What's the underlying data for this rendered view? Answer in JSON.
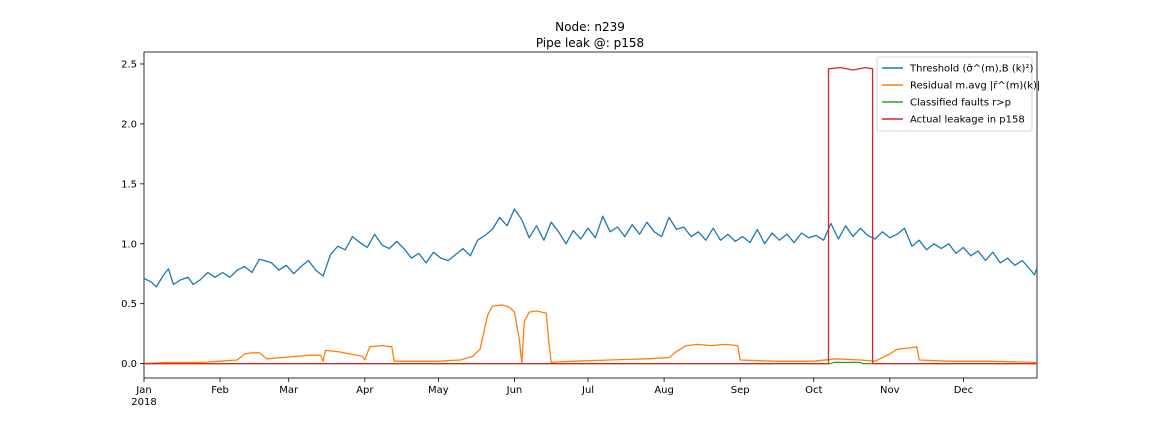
{
  "chart_data": {
    "type": "line",
    "title": "Node: n239",
    "subtitle": "Pipe leak @: p158",
    "xlabel": "",
    "ylabel": "",
    "x_range": [
      "2018-01-01",
      "2018-12-31"
    ],
    "ylim": [
      -0.12,
      2.6
    ],
    "y_ticks": [
      "0.0",
      "0.5",
      "1.0",
      "1.5",
      "2.0",
      "2.5"
    ],
    "y_tick_values": [
      0.0,
      0.5,
      1.0,
      1.5,
      2.0,
      2.5
    ],
    "x_ticks": [
      "Jan",
      "Feb",
      "Mar",
      "Apr",
      "May",
      "Jun",
      "Jul",
      "Aug",
      "Sep",
      "Oct",
      "Nov",
      "Dec"
    ],
    "x_tick_dates": [
      "2018-01-01",
      "2018-02-01",
      "2018-03-01",
      "2018-04-01",
      "2018-05-01",
      "2018-06-01",
      "2018-07-01",
      "2018-08-01",
      "2018-09-01",
      "2018-10-01",
      "2018-11-01",
      "2018-12-01"
    ],
    "x_year_label": "2018",
    "grid": false,
    "legend_position": "top-right",
    "series": [
      {
        "name": "Threshold (σ̂^(m),B (k)²)",
        "color": "#1f77b4",
        "points": [
          [
            "2018-01-01",
            0.71
          ],
          [
            "2018-01-04",
            0.68
          ],
          [
            "2018-01-06",
            0.64
          ],
          [
            "2018-01-09",
            0.74
          ],
          [
            "2018-01-11",
            0.79
          ],
          [
            "2018-01-13",
            0.66
          ],
          [
            "2018-01-16",
            0.7
          ],
          [
            "2018-01-19",
            0.72
          ],
          [
            "2018-01-21",
            0.66
          ],
          [
            "2018-01-24",
            0.7
          ],
          [
            "2018-01-27",
            0.76
          ],
          [
            "2018-01-30",
            0.72
          ],
          [
            "2018-02-02",
            0.76
          ],
          [
            "2018-02-05",
            0.72
          ],
          [
            "2018-02-08",
            0.78
          ],
          [
            "2018-02-11",
            0.81
          ],
          [
            "2018-02-14",
            0.76
          ],
          [
            "2018-02-17",
            0.87
          ],
          [
            "2018-02-19",
            0.86
          ],
          [
            "2018-02-22",
            0.84
          ],
          [
            "2018-02-25",
            0.78
          ],
          [
            "2018-02-28",
            0.82
          ],
          [
            "2018-03-03",
            0.75
          ],
          [
            "2018-03-06",
            0.81
          ],
          [
            "2018-03-09",
            0.86
          ],
          [
            "2018-03-12",
            0.78
          ],
          [
            "2018-03-15",
            0.73
          ],
          [
            "2018-03-18",
            0.91
          ],
          [
            "2018-03-21",
            0.98
          ],
          [
            "2018-03-24",
            0.95
          ],
          [
            "2018-03-27",
            1.06
          ],
          [
            "2018-03-30",
            1.01
          ],
          [
            "2018-04-02",
            0.97
          ],
          [
            "2018-04-05",
            1.08
          ],
          [
            "2018-04-08",
            0.99
          ],
          [
            "2018-04-11",
            0.96
          ],
          [
            "2018-04-14",
            1.02
          ],
          [
            "2018-04-17",
            0.96
          ],
          [
            "2018-04-20",
            0.88
          ],
          [
            "2018-04-23",
            0.92
          ],
          [
            "2018-04-26",
            0.84
          ],
          [
            "2018-04-29",
            0.93
          ],
          [
            "2018-05-02",
            0.88
          ],
          [
            "2018-05-05",
            0.86
          ],
          [
            "2018-05-08",
            0.91
          ],
          [
            "2018-05-11",
            0.96
          ],
          [
            "2018-05-14",
            0.9
          ],
          [
            "2018-05-17",
            1.03
          ],
          [
            "2018-05-20",
            1.07
          ],
          [
            "2018-05-23",
            1.12
          ],
          [
            "2018-05-26",
            1.22
          ],
          [
            "2018-05-29",
            1.15
          ],
          [
            "2018-06-01",
            1.29
          ],
          [
            "2018-06-04",
            1.2
          ],
          [
            "2018-06-07",
            1.05
          ],
          [
            "2018-06-10",
            1.15
          ],
          [
            "2018-06-13",
            1.03
          ],
          [
            "2018-06-16",
            1.18
          ],
          [
            "2018-06-19",
            1.1
          ],
          [
            "2018-06-22",
            1.0
          ],
          [
            "2018-06-25",
            1.11
          ],
          [
            "2018-06-28",
            1.04
          ],
          [
            "2018-07-01",
            1.13
          ],
          [
            "2018-07-04",
            1.05
          ],
          [
            "2018-07-07",
            1.23
          ],
          [
            "2018-07-10",
            1.1
          ],
          [
            "2018-07-13",
            1.14
          ],
          [
            "2018-07-16",
            1.06
          ],
          [
            "2018-07-19",
            1.16
          ],
          [
            "2018-07-22",
            1.08
          ],
          [
            "2018-07-25",
            1.18
          ],
          [
            "2018-07-28",
            1.1
          ],
          [
            "2018-07-31",
            1.06
          ],
          [
            "2018-08-03",
            1.22
          ],
          [
            "2018-08-06",
            1.12
          ],
          [
            "2018-08-09",
            1.14
          ],
          [
            "2018-08-12",
            1.06
          ],
          [
            "2018-08-15",
            1.1
          ],
          [
            "2018-08-18",
            1.03
          ],
          [
            "2018-08-21",
            1.13
          ],
          [
            "2018-08-24",
            1.03
          ],
          [
            "2018-08-27",
            1.08
          ],
          [
            "2018-08-30",
            1.02
          ],
          [
            "2018-09-02",
            1.06
          ],
          [
            "2018-09-05",
            1.01
          ],
          [
            "2018-09-08",
            1.12
          ],
          [
            "2018-09-11",
            1.0
          ],
          [
            "2018-09-14",
            1.09
          ],
          [
            "2018-09-17",
            1.03
          ],
          [
            "2018-09-20",
            1.08
          ],
          [
            "2018-09-23",
            1.01
          ],
          [
            "2018-09-26",
            1.09
          ],
          [
            "2018-09-29",
            1.05
          ],
          [
            "2018-10-02",
            1.07
          ],
          [
            "2018-10-05",
            1.03
          ],
          [
            "2018-10-08",
            1.17
          ],
          [
            "2018-10-11",
            1.04
          ],
          [
            "2018-10-14",
            1.15
          ],
          [
            "2018-10-17",
            1.06
          ],
          [
            "2018-10-20",
            1.13
          ],
          [
            "2018-10-23",
            1.07
          ],
          [
            "2018-10-26",
            1.04
          ],
          [
            "2018-10-29",
            1.1
          ],
          [
            "2018-11-01",
            1.05
          ],
          [
            "2018-11-04",
            1.08
          ],
          [
            "2018-11-07",
            1.13
          ],
          [
            "2018-11-10",
            0.98
          ],
          [
            "2018-11-13",
            1.03
          ],
          [
            "2018-11-16",
            0.95
          ],
          [
            "2018-11-19",
            1.0
          ],
          [
            "2018-11-22",
            0.96
          ],
          [
            "2018-11-25",
            1.0
          ],
          [
            "2018-11-28",
            0.92
          ],
          [
            "2018-12-01",
            0.97
          ],
          [
            "2018-12-04",
            0.9
          ],
          [
            "2018-12-07",
            0.94
          ],
          [
            "2018-12-10",
            0.86
          ],
          [
            "2018-12-13",
            0.93
          ],
          [
            "2018-12-16",
            0.84
          ],
          [
            "2018-12-19",
            0.88
          ],
          [
            "2018-12-22",
            0.82
          ],
          [
            "2018-12-25",
            0.86
          ],
          [
            "2018-12-28",
            0.79
          ],
          [
            "2018-12-30",
            0.74
          ],
          [
            "2018-12-31",
            0.8
          ]
        ]
      },
      {
        "name": "Residual m.avg |r̄^(m)(k)|",
        "color": "#ff7f0e",
        "points": [
          [
            "2018-01-01",
            0.0
          ],
          [
            "2018-01-10",
            0.01
          ],
          [
            "2018-01-25",
            0.01
          ],
          [
            "2018-02-01",
            0.02
          ],
          [
            "2018-02-08",
            0.03
          ],
          [
            "2018-02-11",
            0.08
          ],
          [
            "2018-02-14",
            0.09
          ],
          [
            "2018-02-17",
            0.09
          ],
          [
            "2018-02-20",
            0.04
          ],
          [
            "2018-02-26",
            0.05
          ],
          [
            "2018-03-04",
            0.06
          ],
          [
            "2018-03-10",
            0.07
          ],
          [
            "2018-03-14",
            0.07
          ],
          [
            "2018-03-15",
            0.02
          ],
          [
            "2018-03-16",
            0.11
          ],
          [
            "2018-03-21",
            0.1
          ],
          [
            "2018-03-26",
            0.08
          ],
          [
            "2018-03-31",
            0.06
          ],
          [
            "2018-04-01",
            0.03
          ],
          [
            "2018-04-03",
            0.14
          ],
          [
            "2018-04-08",
            0.15
          ],
          [
            "2018-04-12",
            0.14
          ],
          [
            "2018-04-13",
            0.02
          ],
          [
            "2018-04-20",
            0.02
          ],
          [
            "2018-05-01",
            0.02
          ],
          [
            "2018-05-10",
            0.03
          ],
          [
            "2018-05-15",
            0.06
          ],
          [
            "2018-05-18",
            0.12
          ],
          [
            "2018-05-21",
            0.4
          ],
          [
            "2018-05-23",
            0.48
          ],
          [
            "2018-05-27",
            0.49
          ],
          [
            "2018-05-30",
            0.47
          ],
          [
            "2018-06-01",
            0.43
          ],
          [
            "2018-06-03",
            0.2
          ],
          [
            "2018-06-04",
            0.0
          ],
          [
            "2018-06-05",
            0.35
          ],
          [
            "2018-06-07",
            0.43
          ],
          [
            "2018-06-10",
            0.44
          ],
          [
            "2018-06-14",
            0.42
          ],
          [
            "2018-06-15",
            0.18
          ],
          [
            "2018-06-16",
            0.01
          ],
          [
            "2018-06-25",
            0.02
          ],
          [
            "2018-07-10",
            0.03
          ],
          [
            "2018-07-25",
            0.04
          ],
          [
            "2018-08-03",
            0.05
          ],
          [
            "2018-08-06",
            0.1
          ],
          [
            "2018-08-10",
            0.15
          ],
          [
            "2018-08-15",
            0.16
          ],
          [
            "2018-08-20",
            0.15
          ],
          [
            "2018-08-26",
            0.16
          ],
          [
            "2018-08-31",
            0.15
          ],
          [
            "2018-09-01",
            0.03
          ],
          [
            "2018-09-15",
            0.02
          ],
          [
            "2018-10-01",
            0.02
          ],
          [
            "2018-10-10",
            0.04
          ],
          [
            "2018-10-20",
            0.03
          ],
          [
            "2018-10-26",
            0.02
          ],
          [
            "2018-11-01",
            0.08
          ],
          [
            "2018-11-04",
            0.12
          ],
          [
            "2018-11-09",
            0.13
          ],
          [
            "2018-11-12",
            0.14
          ],
          [
            "2018-11-13",
            0.03
          ],
          [
            "2018-11-25",
            0.02
          ],
          [
            "2018-12-10",
            0.02
          ],
          [
            "2018-12-31",
            0.01
          ]
        ]
      },
      {
        "name": "Classified faults r>p",
        "color": "#2ca02c",
        "points": [
          [
            "2018-01-01",
            0.0
          ],
          [
            "2018-10-08",
            0.0
          ],
          [
            "2018-10-09",
            0.01
          ],
          [
            "2018-10-20",
            0.01
          ],
          [
            "2018-10-21",
            0.0
          ],
          [
            "2018-12-31",
            0.0
          ]
        ]
      },
      {
        "name": "Actual leakage in p158",
        "color": "#d62728",
        "points": [
          [
            "2018-01-01",
            0.0
          ],
          [
            "2018-10-07",
            0.0
          ],
          [
            "2018-10-07",
            2.46
          ],
          [
            "2018-10-12",
            2.47
          ],
          [
            "2018-10-17",
            2.45
          ],
          [
            "2018-10-22",
            2.47
          ],
          [
            "2018-10-25",
            2.46
          ],
          [
            "2018-10-25",
            0.0
          ],
          [
            "2018-12-31",
            0.0
          ]
        ]
      }
    ]
  }
}
